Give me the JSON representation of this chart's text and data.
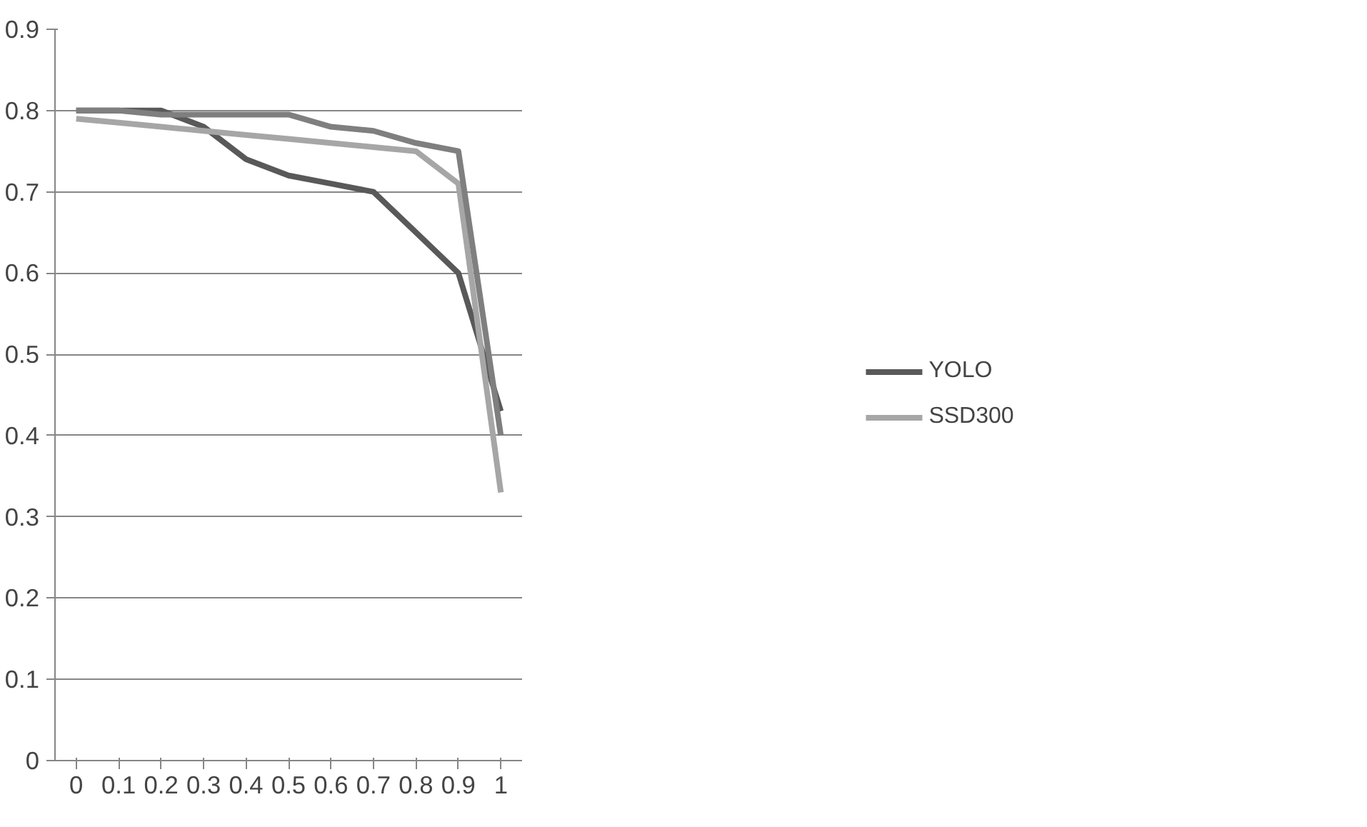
{
  "chart_data": {
    "type": "line",
    "categories": [
      "0",
      "0.1",
      "0.2",
      "0.3",
      "0.4",
      "0.5",
      "0.6",
      "0.7",
      "0.8",
      "0.9",
      "1"
    ],
    "series": [
      {
        "name": "YOLO",
        "color": "#595959",
        "values": [
          0.8,
          0.8,
          0.8,
          0.78,
          0.74,
          0.72,
          0.71,
          0.7,
          0.65,
          0.6,
          0.43
        ]
      },
      {
        "name": "SSD300",
        "color": "#a6a6a6",
        "values": [
          0.79,
          0.785,
          0.78,
          0.775,
          0.77,
          0.765,
          0.76,
          0.755,
          0.75,
          0.71,
          0.33
        ]
      },
      {
        "color": "#7f7f7f",
        "values": [
          0.8,
          0.8,
          0.795,
          0.795,
          0.795,
          0.795,
          0.78,
          0.775,
          0.76,
          0.75,
          0.4
        ]
      }
    ],
    "ylim": [
      0,
      0.9
    ],
    "yticks": [
      0,
      0.1,
      0.2,
      0.3,
      0.4,
      0.5,
      0.6,
      0.7,
      0.8,
      0.9
    ],
    "grid": "y",
    "legend": "right"
  }
}
